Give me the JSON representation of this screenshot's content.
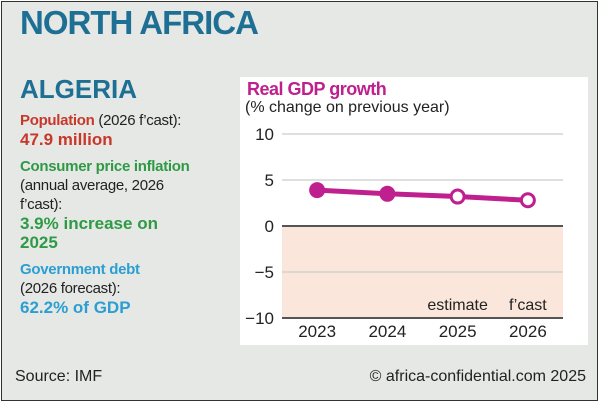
{
  "header": {
    "region": "NORTH AFRICA",
    "country": "ALGERIA"
  },
  "facts": {
    "population": {
      "label": "Population",
      "note": " (2026 f’cast):",
      "value": "47.9 million"
    },
    "inflation": {
      "label": "Consumer price inflation",
      "note": "(annual average, 2026 f’cast):",
      "value": "3.9% increase on 2025"
    },
    "debt": {
      "label": "Government debt",
      "note": "(2026 forecast):",
      "value": "62.2% of GDP"
    }
  },
  "colors": {
    "region": "#1e6f94",
    "population": "#c8382a",
    "inflation": "#2f9a46",
    "debt": "#2b9ed2",
    "series": "#c0208e",
    "negative_band": "#fbe6dc"
  },
  "chart_data": {
    "type": "line",
    "title": "Real GDP growth",
    "subtitle": "(% change on previous year)",
    "categories": [
      "2023",
      "2024",
      "2025",
      "2026"
    ],
    "values": [
      3.9,
      3.5,
      3.2,
      2.8
    ],
    "marker_style": [
      "filled",
      "filled",
      "hollow",
      "hollow"
    ],
    "annotations": {
      "2025": "estimate",
      "2026": "f’cast"
    },
    "ylim": [
      -10,
      10
    ],
    "yticks": [
      10,
      5,
      0,
      -5,
      -10
    ],
    "ytick_labels": [
      "10",
      "5",
      "0",
      "−5",
      "−10"
    ],
    "grid": true,
    "negative_region_shaded": true
  },
  "footer": {
    "source": "Source: IMF",
    "copyright": "© africa-confidential.com 2025"
  }
}
